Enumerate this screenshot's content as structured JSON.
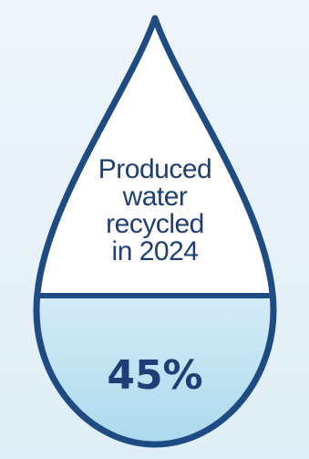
{
  "graphic": {
    "caption_lines": [
      "Produced",
      "water",
      "recycled",
      "in 2024"
    ],
    "value_label": "45%",
    "fill_fraction": 0.45
  },
  "colors": {
    "outline": "#1e4b84",
    "text": "#1f3e77",
    "drop_top": "#ffffff",
    "fill_top": "#d4ecf6",
    "fill_bottom": "#a9d8ec",
    "background": "#eef5fa"
  }
}
